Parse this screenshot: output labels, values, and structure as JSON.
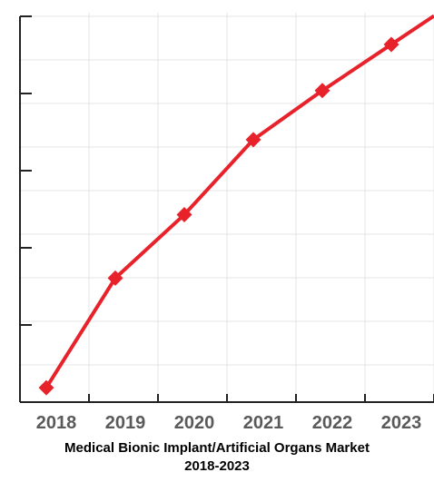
{
  "chart_data": {
    "type": "line",
    "title_lines": [
      "Medical Bionic Implant/Artificial Organs Market",
      "2018-2023"
    ],
    "categories": [
      "2018",
      "2019",
      "2020",
      "2021",
      "2022",
      "2023"
    ],
    "series": [
      {
        "values": [
          5,
          43,
          65,
          91,
          108,
          124
        ],
        "color": "#e8222b",
        "marker": "diamond"
      }
    ],
    "ylim": [
      0,
      135
    ],
    "y_tick_count": 5,
    "grid": true,
    "y_tick_labels_shown": false,
    "line_continues_past_last_category": true
  }
}
